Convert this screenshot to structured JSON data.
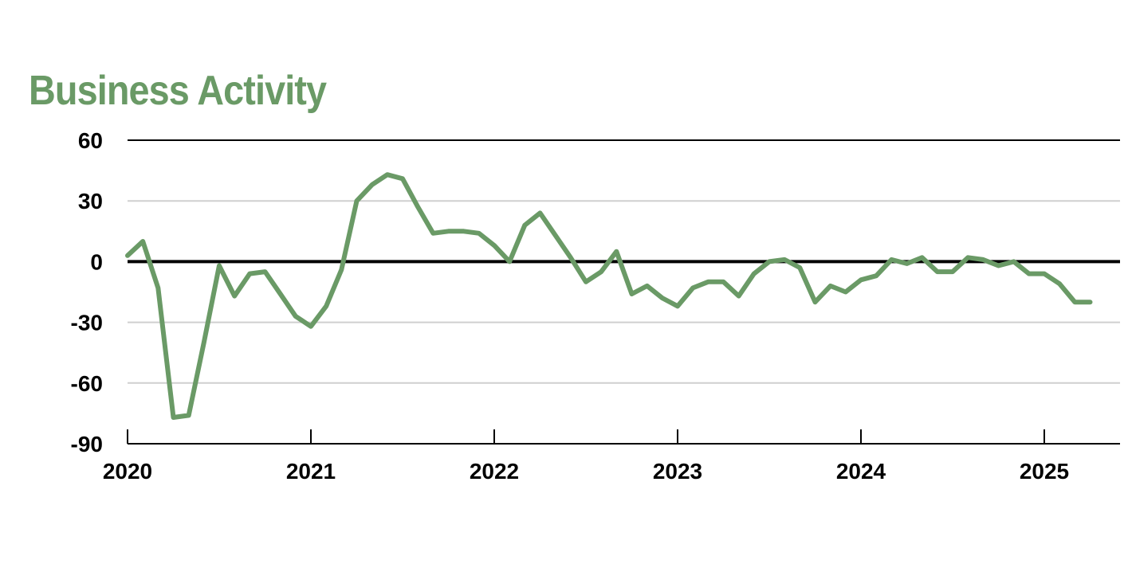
{
  "chart_data": {
    "type": "line",
    "title": "Business Activity",
    "xlabel": "",
    "ylabel": "",
    "x_ticks": [
      "2020",
      "2021",
      "2022",
      "2023",
      "2024",
      "2025"
    ],
    "y_ticks": [
      "60",
      "30",
      "0",
      "-30",
      "-60",
      "-90"
    ],
    "ylim": [
      -90,
      60
    ],
    "xlim": [
      "2020-01",
      "2025-06"
    ],
    "grid": true,
    "line_color": "#6a9a66",
    "series": [
      {
        "x": [
          "2020-01",
          "2020-02",
          "2020-03",
          "2020-04",
          "2020-05",
          "2020-06",
          "2020-07",
          "2020-08",
          "2020-09",
          "2020-10",
          "2020-11",
          "2020-12",
          "2021-01",
          "2021-02",
          "2021-03",
          "2021-04",
          "2021-05",
          "2021-06",
          "2021-07",
          "2021-08",
          "2021-09",
          "2021-10",
          "2021-11",
          "2021-12",
          "2022-01",
          "2022-02",
          "2022-03",
          "2022-04",
          "2022-05",
          "2022-06",
          "2022-07",
          "2022-08",
          "2022-09",
          "2022-10",
          "2022-11",
          "2022-12",
          "2023-01",
          "2023-02",
          "2023-03",
          "2023-04",
          "2023-05",
          "2023-06",
          "2023-07",
          "2023-08",
          "2023-09",
          "2023-10",
          "2023-11",
          "2023-12",
          "2024-01",
          "2024-02",
          "2024-03",
          "2024-04",
          "2024-05",
          "2024-06",
          "2024-07",
          "2024-08",
          "2024-09",
          "2024-10",
          "2024-11",
          "2024-12",
          "2025-01",
          "2025-02",
          "2025-03",
          "2025-04"
        ],
        "values": [
          3,
          10,
          -13,
          -77,
          -76,
          -40,
          -2,
          -17,
          -6,
          -5,
          -16,
          -27,
          -32,
          -22,
          -4,
          30,
          38,
          43,
          41,
          27,
          14,
          15,
          15,
          14,
          8,
          0,
          18,
          24,
          13,
          2,
          -10,
          -5,
          5,
          -16,
          -12,
          -18,
          -22,
          -13,
          -10,
          -10,
          -17,
          -6,
          0,
          1,
          -3,
          -20,
          -12,
          -15,
          -9,
          -7,
          1,
          -1,
          2,
          -5,
          -5,
          2,
          1,
          -2,
          0,
          -6,
          -6,
          -11,
          -20,
          -20
        ]
      }
    ]
  }
}
